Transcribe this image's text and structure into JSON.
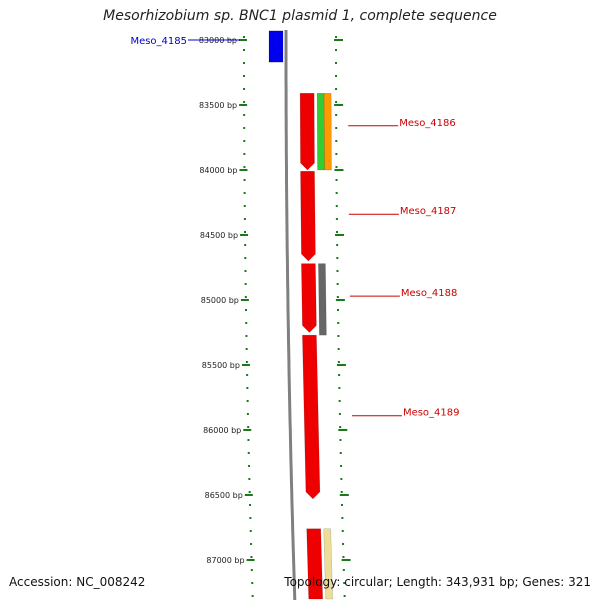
{
  "title": "Mesorhizobium sp. BNC1 plasmid 1, complete sequence",
  "footer": {
    "accession": "Accession: NC_008242",
    "summary": "Topology: circular; Length: 343,931 bp; Genes: 321"
  },
  "colors": {
    "tick": "#1a7a1a",
    "backbone": "#808080",
    "label_red": "#cc0000",
    "label_blue": "#0000cc"
  },
  "ticks": [
    {
      "bp": 83000,
      "label": "83000 bp"
    },
    {
      "bp": 83500,
      "label": "83500 bp"
    },
    {
      "bp": 84000,
      "label": "84000 bp"
    },
    {
      "bp": 84500,
      "label": "84500 bp"
    },
    {
      "bp": 85000,
      "label": "85000 bp"
    },
    {
      "bp": 85500,
      "label": "85500 bp"
    },
    {
      "bp": 86000,
      "label": "86000 bp"
    },
    {
      "bp": 86500,
      "label": "86500 bp"
    },
    {
      "bp": 87000,
      "label": "87000 bp"
    }
  ],
  "features": [
    {
      "track": "inner",
      "start": 82930,
      "end": 83170,
      "color": "#0000ee",
      "strand": "none"
    },
    {
      "track": "main",
      "start": 83410,
      "end": 84000,
      "color": "#ee0000",
      "strand": "minus"
    },
    {
      "track": "main",
      "start": 84010,
      "end": 84700,
      "color": "#ee0000",
      "strand": "minus"
    },
    {
      "track": "main",
      "start": 84720,
      "end": 85250,
      "color": "#ee0000",
      "strand": "minus"
    },
    {
      "track": "main",
      "start": 85270,
      "end": 86530,
      "color": "#ee0000",
      "strand": "minus"
    },
    {
      "track": "main",
      "start": 86760,
      "end": 87300,
      "color": "#ee0000",
      "strand": "none"
    },
    {
      "track": "sub1",
      "start": 83410,
      "end": 84000,
      "color": "#33cc33",
      "strand": "none"
    },
    {
      "track": "sub2",
      "start": 83410,
      "end": 84000,
      "color": "#ff9900",
      "strand": "none"
    },
    {
      "track": "sub1",
      "start": 84720,
      "end": 85270,
      "color": "#666666",
      "strand": "none"
    },
    {
      "track": "sub1",
      "start": 86760,
      "end": 87300,
      "color": "#eedd99",
      "strand": "none"
    }
  ],
  "gene_labels": [
    {
      "name": "Meso_4185",
      "bp": 83000,
      "side": "left",
      "color": "#0000cc"
    },
    {
      "name": "Meso_4186",
      "bp": 83660,
      "side": "right",
      "color": "#cc0000"
    },
    {
      "name": "Meso_4187",
      "bp": 84340,
      "side": "right",
      "color": "#cc0000"
    },
    {
      "name": "Meso_4188",
      "bp": 84970,
      "side": "right",
      "color": "#cc0000"
    },
    {
      "name": "Meso_4189",
      "bp": 85890,
      "side": "right",
      "color": "#cc0000"
    }
  ]
}
